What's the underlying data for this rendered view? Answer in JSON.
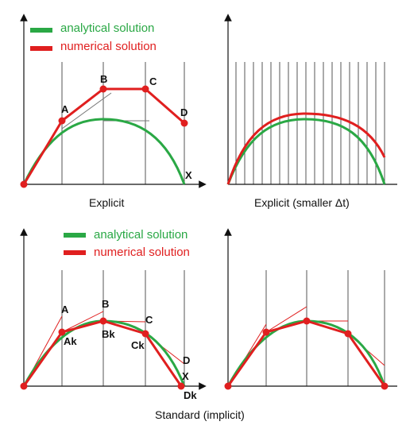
{
  "colors": {
    "analytical": "#2aa845",
    "numerical": "#e01f1f",
    "axis": "#111111",
    "gridline": "#555555",
    "tangent": "#777777",
    "background": "#ffffff"
  },
  "legend": {
    "analytical_label": "analytical solution",
    "numerical_label": "numerical solution"
  },
  "captions": {
    "explicit": "Explicit",
    "explicit_small": "Explicit (smaller Δt)",
    "standard": "Standard (implicit)"
  },
  "panels": {
    "explicit": {
      "point_labels": [
        "A",
        "B",
        "C",
        "D"
      ],
      "axis_label": "X"
    },
    "standard": {
      "point_labels": [
        "A",
        "B",
        "C",
        "D"
      ],
      "corrected_labels": [
        "Ak",
        "Bk",
        "Ck",
        "Dk"
      ],
      "axis_label": "X"
    }
  }
}
